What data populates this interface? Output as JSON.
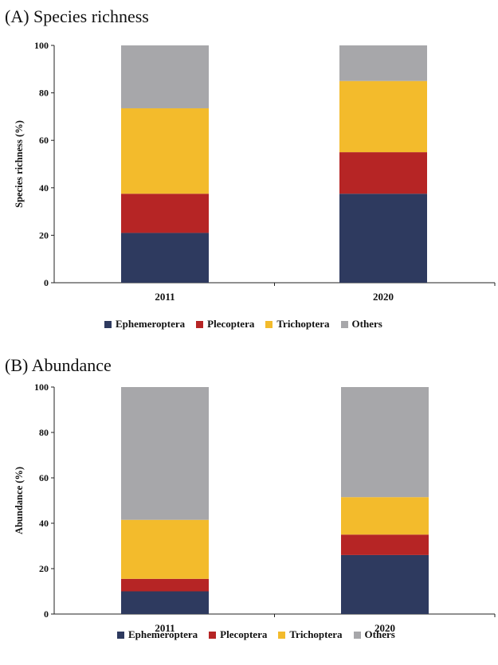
{
  "chart_data": [
    {
      "type": "bar",
      "stacked": true,
      "title": "(A) Species richness",
      "xlabel": "",
      "ylabel": "Species richness (%)",
      "ylim": [
        0,
        100
      ],
      "yticks": [
        "0",
        "20",
        "40",
        "60",
        "80",
        "100"
      ],
      "categories": [
        "2011",
        "2020"
      ],
      "series": [
        {
          "name": "Ephemeroptera",
          "color": "#2e3a5f",
          "values": [
            21,
            37.5
          ]
        },
        {
          "name": "Plecoptera",
          "color": "#b62525",
          "values": [
            16.5,
            17.5
          ]
        },
        {
          "name": "Trichoptera",
          "color": "#f3bb2c",
          "values": [
            36,
            30
          ]
        },
        {
          "name": "Others",
          "color": "#a7a7aa",
          "values": [
            26.5,
            15
          ]
        }
      ],
      "legend": "bottom"
    },
    {
      "type": "bar",
      "stacked": true,
      "title": "(B) Abundance",
      "xlabel": "",
      "ylabel": "Abundance (%)",
      "ylim": [
        0,
        100
      ],
      "yticks": [
        "0",
        "20",
        "40",
        "60",
        "80",
        "100"
      ],
      "categories": [
        "2011",
        "2020"
      ],
      "series": [
        {
          "name": "Ephemeroptera",
          "color": "#2e3a5f",
          "values": [
            10,
            26
          ]
        },
        {
          "name": "Plecoptera",
          "color": "#b62525",
          "values": [
            5.5,
            9
          ]
        },
        {
          "name": "Trichoptera",
          "color": "#f3bb2c",
          "values": [
            26,
            16.5
          ]
        },
        {
          "name": "Others",
          "color": "#a7a7aa",
          "values": [
            58.5,
            48.5
          ]
        }
      ],
      "legend": "bottom"
    }
  ]
}
